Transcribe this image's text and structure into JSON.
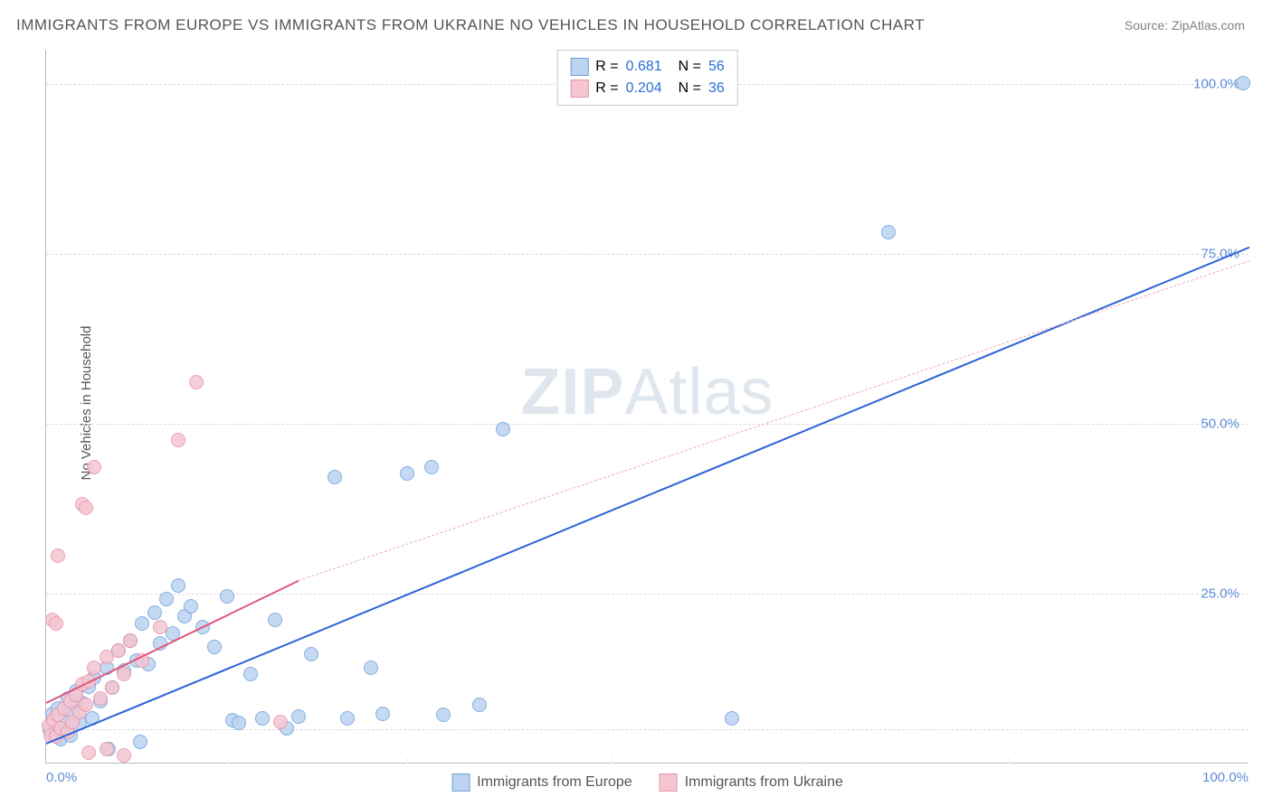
{
  "title": "IMMIGRANTS FROM EUROPE VS IMMIGRANTS FROM UKRAINE NO VEHICLES IN HOUSEHOLD CORRELATION CHART",
  "source": "Source: ZipAtlas.com",
  "ylabel": "No Vehicles in Household",
  "watermark": {
    "part1": "ZIP",
    "part2": "Atlas"
  },
  "chart": {
    "type": "scatter",
    "xlim": [
      0,
      100
    ],
    "ylim": [
      0,
      105
    ],
    "xtick_labels": [
      "0.0%",
      "100.0%"
    ],
    "ytick_labels": [
      "25.0%",
      "50.0%",
      "75.0%",
      "100.0%"
    ],
    "ytick_values": [
      25,
      50,
      75,
      100
    ],
    "grid_h_values": [
      5,
      25,
      50,
      75,
      100
    ],
    "grid_v_values": [
      15,
      30,
      47,
      63,
      80
    ],
    "grid_color": "#d8d8d8",
    "tick_label_color": "#5b8dd6",
    "background_color": "#ffffff",
    "series": [
      {
        "name": "Immigrants from Europe",
        "color_fill": "#bcd4f0",
        "color_stroke": "#6ea0dd",
        "marker_radius": 8,
        "R": "0.681",
        "N": "56",
        "trend": {
          "x1": 0,
          "y1": 3,
          "x2": 100,
          "y2": 76,
          "color": "#2962d9",
          "width": 2.5,
          "dash": false
        },
        "points": [
          [
            0.3,
            4.8
          ],
          [
            0.5,
            7.2
          ],
          [
            0.8,
            5.5
          ],
          [
            1.0,
            8.0
          ],
          [
            1.2,
            3.5
          ],
          [
            1.5,
            6.0
          ],
          [
            1.8,
            9.5
          ],
          [
            2.0,
            4.0
          ],
          [
            2.2,
            7.5
          ],
          [
            2.5,
            10.5
          ],
          [
            2.8,
            5.8
          ],
          [
            3.0,
            8.8
          ],
          [
            3.5,
            11.2
          ],
          [
            3.8,
            6.5
          ],
          [
            4.0,
            12.5
          ],
          [
            4.5,
            9.0
          ],
          [
            5.0,
            14.0
          ],
          [
            5.5,
            11.0
          ],
          [
            6.0,
            16.5
          ],
          [
            6.5,
            13.5
          ],
          [
            7.0,
            18.0
          ],
          [
            7.5,
            15.0
          ],
          [
            8.0,
            20.5
          ],
          [
            8.5,
            14.5
          ],
          [
            9.0,
            22.0
          ],
          [
            9.5,
            17.5
          ],
          [
            10.0,
            24.0
          ],
          [
            10.5,
            19.0
          ],
          [
            11.0,
            26.0
          ],
          [
            11.5,
            21.5
          ],
          [
            12.0,
            23.0
          ],
          [
            13.0,
            20.0
          ],
          [
            14.0,
            17.0
          ],
          [
            15.0,
            24.5
          ],
          [
            15.5,
            6.2
          ],
          [
            16.0,
            5.8
          ],
          [
            17.0,
            13.0
          ],
          [
            18.0,
            6.5
          ],
          [
            19.0,
            21.0
          ],
          [
            20.0,
            5.0
          ],
          [
            21.0,
            6.8
          ],
          [
            22.0,
            16.0
          ],
          [
            24.0,
            42.0
          ],
          [
            25.0,
            6.5
          ],
          [
            27.0,
            14.0
          ],
          [
            28.0,
            7.2
          ],
          [
            30.0,
            42.5
          ],
          [
            32.0,
            43.5
          ],
          [
            33.0,
            7.0
          ],
          [
            36.0,
            8.5
          ],
          [
            38.0,
            49.0
          ],
          [
            57.0,
            6.5
          ],
          [
            70.0,
            78.0
          ],
          [
            99.5,
            100.0
          ],
          [
            5.2,
            2.0
          ],
          [
            7.8,
            3.0
          ]
        ]
      },
      {
        "name": "Immigrants from Ukraine",
        "color_fill": "#f5c6d2",
        "color_stroke": "#e892ab",
        "marker_radius": 8,
        "R": "0.204",
        "N": "36",
        "trend_solid": {
          "x1": 0,
          "y1": 9,
          "x2": 21,
          "y2": 27,
          "color": "#e05779",
          "width": 2.5
        },
        "trend_dash": {
          "x1": 21,
          "y1": 27,
          "x2": 100,
          "y2": 74,
          "color": "#f0a8ba",
          "width": 1.2
        },
        "points": [
          [
            0.2,
            5.5
          ],
          [
            0.4,
            4.0
          ],
          [
            0.6,
            6.2
          ],
          [
            0.8,
            3.8
          ],
          [
            1.0,
            7.0
          ],
          [
            1.2,
            5.0
          ],
          [
            1.5,
            8.0
          ],
          [
            1.8,
            4.5
          ],
          [
            2.0,
            9.0
          ],
          [
            2.2,
            6.0
          ],
          [
            2.5,
            10.0
          ],
          [
            2.8,
            7.5
          ],
          [
            3.0,
            11.5
          ],
          [
            3.3,
            8.5
          ],
          [
            1.0,
            30.5
          ],
          [
            0.5,
            21.0
          ],
          [
            0.8,
            20.5
          ],
          [
            3.5,
            12.0
          ],
          [
            4.0,
            14.0
          ],
          [
            4.5,
            9.5
          ],
          [
            5.0,
            15.5
          ],
          [
            5.5,
            11.0
          ],
          [
            3.0,
            38.0
          ],
          [
            3.3,
            37.5
          ],
          [
            4.0,
            43.5
          ],
          [
            6.0,
            16.5
          ],
          [
            6.5,
            13.0
          ],
          [
            7.0,
            18.0
          ],
          [
            8.0,
            15.0
          ],
          [
            9.5,
            20.0
          ],
          [
            3.5,
            1.5
          ],
          [
            5.0,
            2.0
          ],
          [
            6.5,
            1.0
          ],
          [
            11.0,
            47.5
          ],
          [
            12.5,
            56.0
          ],
          [
            19.5,
            6.0
          ]
        ]
      }
    ]
  },
  "legend_top": {
    "r_label": "R =",
    "n_label": "N =",
    "r_color": "#2a6fd6",
    "text_color": "#555"
  },
  "legend_bottom": {
    "items": [
      "Immigrants from Europe",
      "Immigrants from Ukraine"
    ]
  }
}
